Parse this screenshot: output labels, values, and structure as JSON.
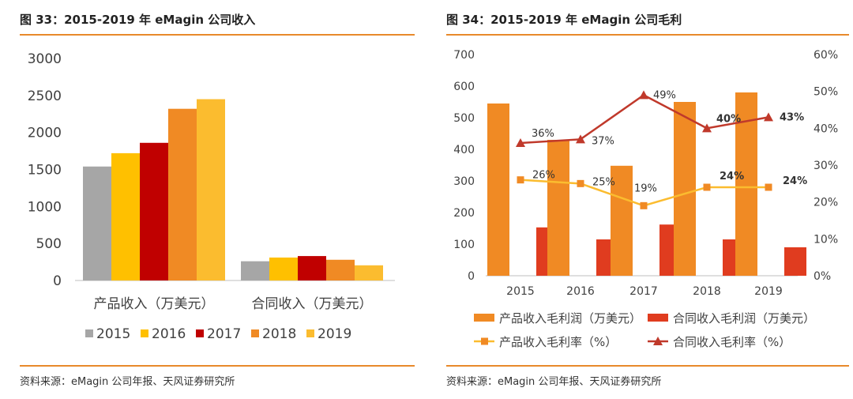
{
  "chart_data": [
    {
      "type": "bar",
      "title": "图 33：2015-2019 年 eMagin 公司收入",
      "source": "资料来源：eMagin 公司年报、天风证券研究所",
      "categories": [
        "产品收入（万美元）",
        "合同收入（万美元）"
      ],
      "series": [
        {
          "name": "2015",
          "color": "#a6a6a6",
          "values": [
            1540,
            260
          ]
        },
        {
          "name": "2016",
          "color": "#ffc000",
          "values": [
            1720,
            310
          ]
        },
        {
          "name": "2017",
          "color": "#c00000",
          "values": [
            1860,
            330
          ]
        },
        {
          "name": "2018",
          "color": "#f08a24",
          "values": [
            2320,
            280
          ]
        },
        {
          "name": "2019",
          "color": "#fbbc2f",
          "values": [
            2450,
            205
          ]
        }
      ],
      "ylim": [
        0,
        3000
      ],
      "yticks": [
        "0",
        "500",
        "1000",
        "1500",
        "2000",
        "2500",
        "3000"
      ],
      "legend": "bottom"
    },
    {
      "type": "bar+line",
      "title": "图 34：2015-2019 年 eMagin 公司毛利",
      "source": "资料来源：eMagin 公司年报、天风证券研究所",
      "categories": [
        "2015",
        "2016",
        "2017",
        "2018",
        "2019"
      ],
      "bar_series": [
        {
          "name": "产品收入毛利润（万美元）",
          "color": "#f08a24",
          "values": [
            545,
            430,
            348,
            550,
            580
          ]
        },
        {
          "name": "合同收入毛利润（万美元）",
          "color": "#e03c1f",
          "values": [
            153,
            115,
            162,
            115,
            90
          ]
        }
      ],
      "line_series": [
        {
          "name": "产品收入毛利率（%）",
          "color": "#fbbc2f",
          "marker": "square",
          "values": [
            26,
            25,
            19,
            24,
            24
          ],
          "labels": [
            "26%",
            "25%",
            "19%",
            "24%",
            "24%"
          ]
        },
        {
          "name": "合同收入毛利率（%）",
          "color": "#c0392b",
          "marker": "triangle",
          "values": [
            36,
            37,
            49,
            40,
            43
          ],
          "labels": [
            "36%",
            "37%",
            "49%",
            "40%",
            "43%"
          ]
        }
      ],
      "ylim_left": [
        0,
        700
      ],
      "yticks_left": [
        "0",
        "100",
        "200",
        "300",
        "400",
        "500",
        "600",
        "700"
      ],
      "ylim_right": [
        0,
        60
      ],
      "yticks_right": [
        "0%",
        "10%",
        "20%",
        "30%",
        "40%",
        "50%",
        "60%"
      ],
      "legend": "bottom"
    }
  ]
}
